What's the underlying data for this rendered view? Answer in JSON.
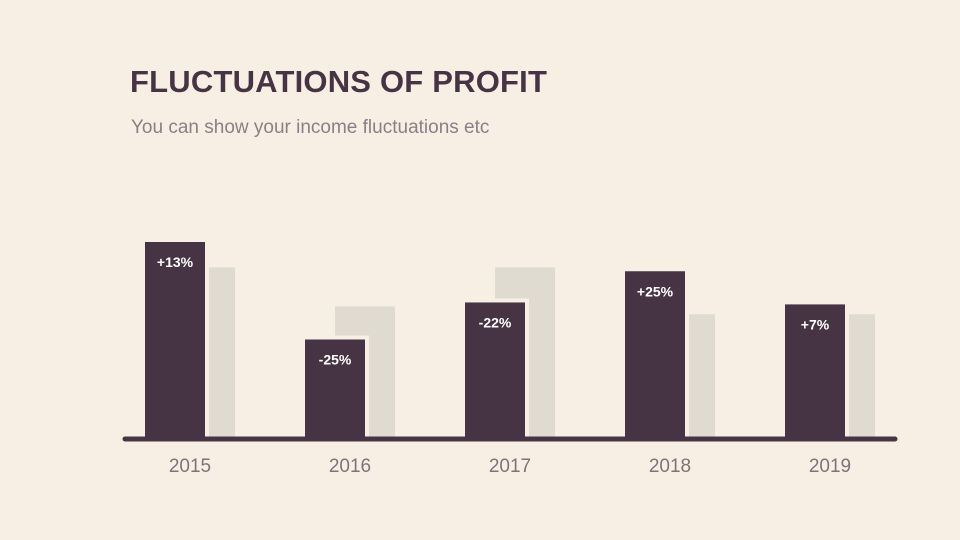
{
  "slide": {
    "title": "FLUCTUATIONS OF PROFIT",
    "subtitle": "You can show your income fluctuations etc"
  },
  "colors": {
    "background": "#f8efe4",
    "primary_bar": "#463444",
    "secondary_bar": "#e0dbd1",
    "axis": "#463444",
    "label_text": "#ffffff",
    "tick_text": "#7d7378"
  },
  "chart_data": {
    "type": "bar",
    "categories": [
      "2015",
      "2016",
      "2017",
      "2018",
      "2019"
    ],
    "series": [
      {
        "values": [
          100,
          50,
          69,
          85,
          68
        ],
        "labels": [
          "+13%",
          "-25%",
          "-22%",
          "+25%",
          "+7%"
        ]
      },
      {
        "values": [
          87,
          67,
          87,
          63,
          63
        ]
      }
    ],
    "ylim": [
      0,
      100
    ],
    "grid": false,
    "legend": "none"
  }
}
